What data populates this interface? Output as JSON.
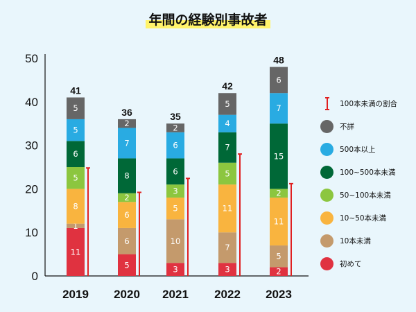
{
  "chart_data": {
    "type": "bar",
    "stacked": true,
    "title": "年間の経験別事故者",
    "categories": [
      "2019",
      "2020",
      "2021",
      "2022",
      "2023"
    ],
    "yticks": [
      "0",
      "10",
      "20",
      "30",
      "40",
      "50"
    ],
    "ylim": [
      0,
      50
    ],
    "totals": [
      "41",
      "36",
      "35",
      "42",
      "48"
    ],
    "series": [
      {
        "name": "初めて",
        "color": "#e03240",
        "values": [
          11,
          5,
          3,
          3,
          2
        ]
      },
      {
        "name": "10本未満",
        "color": "#c49a6c",
        "values": [
          1,
          6,
          10,
          7,
          5
        ]
      },
      {
        "name": "10~50本未満",
        "color": "#f9b43f",
        "values": [
          8,
          6,
          5,
          11,
          11
        ]
      },
      {
        "name": "50~100本未満",
        "color": "#8cc63f",
        "values": [
          5,
          2,
          3,
          5,
          2
        ]
      },
      {
        "name": "100~500本未満",
        "color": "#006837",
        "values": [
          6,
          8,
          6,
          7,
          15
        ]
      },
      {
        "name": "500本以上",
        "color": "#29abe2",
        "values": [
          5,
          7,
          6,
          4,
          7
        ]
      },
      {
        "name": "不詳",
        "color": "#666666",
        "values": [
          5,
          2,
          2,
          5,
          6
        ]
      }
    ],
    "ratio_marker": {
      "name": "100本未満の割合",
      "color": "#e02020",
      "values": [
        24.8,
        19.2,
        22.4,
        28,
        21.2
      ]
    },
    "legend_position": "right"
  }
}
